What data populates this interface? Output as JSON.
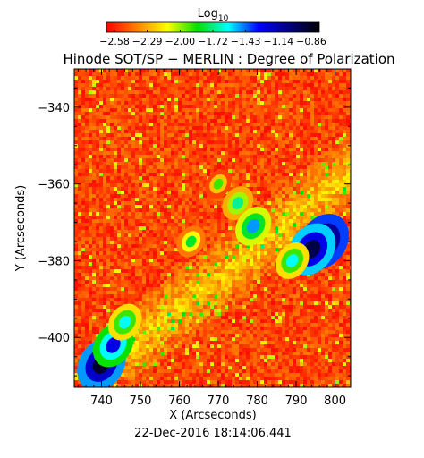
{
  "colorbar": {
    "label_main": "Log",
    "label_sub": "10",
    "ticks": [
      "−2.58",
      "−2.29",
      "−2.00",
      "−1.72",
      "−1.43",
      "−1.14",
      "−0.86"
    ],
    "colors": [
      "#ff0000",
      "#ff8000",
      "#ffff00",
      "#00e000",
      "#00ffff",
      "#0000ff",
      "#000080",
      "#000000"
    ]
  },
  "chart_data": {
    "type": "heatmap",
    "title": "Hinode SOT/SP − MERLIN : Degree of Polarization",
    "xlabel": "X (Arcseconds)",
    "ylabel": "Y (Arcseconds)",
    "xlim": [
      733,
      804
    ],
    "ylim": [
      -413,
      -330
    ],
    "x_ticks": [
      740,
      750,
      760,
      770,
      780,
      790,
      800
    ],
    "y_ticks": [
      -340,
      -360,
      -380,
      -400
    ],
    "y_tick_labels": [
      "−340",
      "−360",
      "−380",
      "−400"
    ],
    "value_label": "Log10 degree of polarization",
    "value_range": [
      -2.58,
      -0.86
    ],
    "features": [
      {
        "x": 797,
        "y": -375,
        "value": -0.86
      },
      {
        "x": 794,
        "y": -377,
        "value": -1.0
      },
      {
        "x": 789,
        "y": -380,
        "value": -1.6
      },
      {
        "x": 740,
        "y": -407,
        "value": -0.95
      },
      {
        "x": 743,
        "y": -402,
        "value": -1.3
      },
      {
        "x": 746,
        "y": -396,
        "value": -1.6
      },
      {
        "x": 775,
        "y": -365,
        "value": -1.7
      },
      {
        "x": 779,
        "y": -371,
        "value": -1.5
      },
      {
        "x": 763,
        "y": -375,
        "value": -1.8
      },
      {
        "x": 770,
        "y": -360,
        "value": -1.9
      }
    ]
  },
  "footer": {
    "timestamp": "22-Dec-2016 18:14:06.441"
  }
}
